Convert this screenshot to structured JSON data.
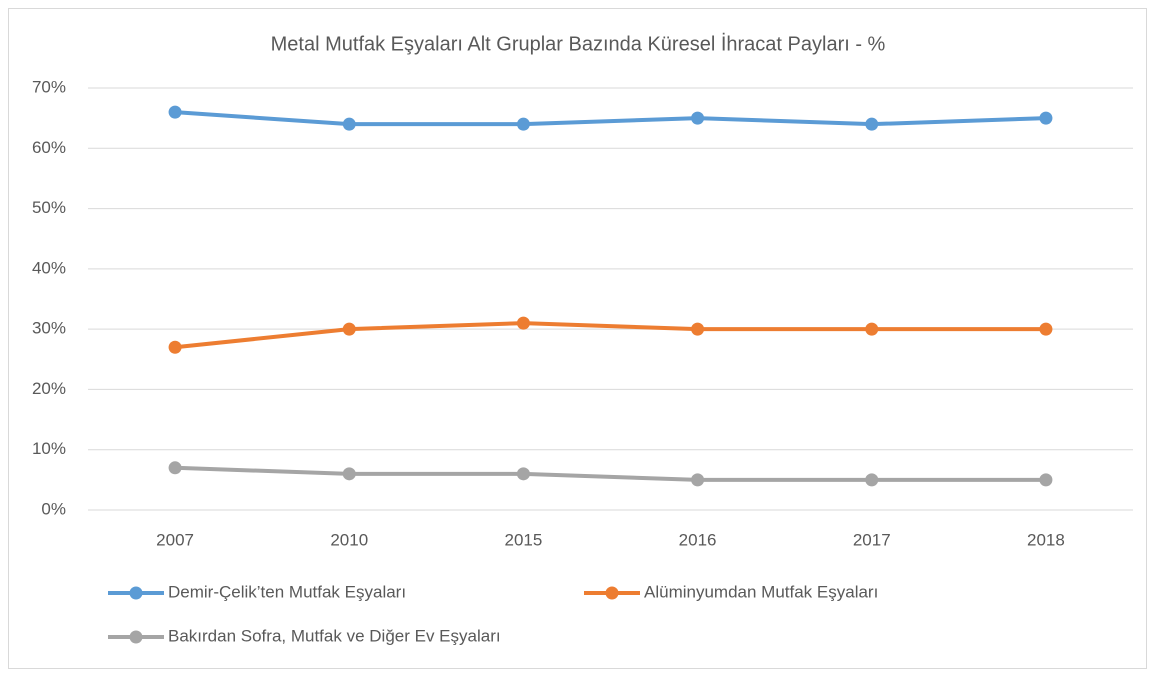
{
  "chart_data": {
    "type": "line",
    "title": "Metal Mutfak Eşyaları Alt Gruplar Bazında Küresel İhracat Payları - %",
    "categories": [
      "2007",
      "2010",
      "2015",
      "2016",
      "2017",
      "2018"
    ],
    "series": [
      {
        "name": "Demir-Çelik’ten Mutfak Eşyaları",
        "color": "#5b9bd5",
        "values": [
          66,
          64,
          64,
          65,
          64,
          65
        ]
      },
      {
        "name": "Alüminyumdan Mutfak Eşyaları",
        "color": "#ed7d31",
        "values": [
          27,
          30,
          31,
          30,
          30,
          30
        ]
      },
      {
        "name": "Bakırdan Sofra, Mutfak ve Diğer Ev Eşyaları",
        "color": "#a5a5a5",
        "values": [
          7,
          6,
          6,
          5,
          5,
          5
        ]
      }
    ],
    "ylim": [
      0,
      70
    ],
    "yticks": [
      {
        "value": 0,
        "label": "0%"
      },
      {
        "value": 10,
        "label": "10%"
      },
      {
        "value": 20,
        "label": "20%"
      },
      {
        "value": 30,
        "label": "30%"
      },
      {
        "value": 40,
        "label": "40%"
      },
      {
        "value": 50,
        "label": "50%"
      },
      {
        "value": 60,
        "label": "60%"
      },
      {
        "value": 70,
        "label": "70%"
      }
    ],
    "grid": true,
    "legend": "bottom"
  }
}
